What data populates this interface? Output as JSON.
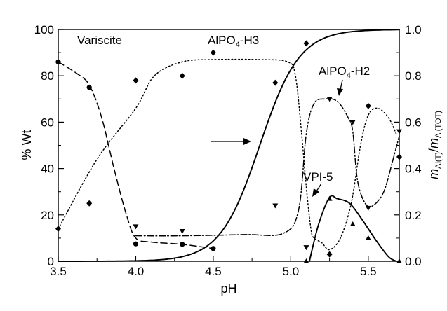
{
  "chart_data": {
    "type": "scatter",
    "xlabel": "pH",
    "ylabel_left": "% Wt",
    "ylabel_right": {
      "main": "m",
      "sub1": "Al(T)",
      "sep": "/",
      "main2": "m",
      "sub2": "Al(TOT)"
    },
    "xlim": [
      3.5,
      5.7
    ],
    "ylim_left": [
      0,
      100
    ],
    "ylim_right": [
      0.0,
      1.0
    ],
    "x_ticks": [
      "3.5",
      "4.0",
      "4.5",
      "5.0",
      "5.5"
    ],
    "x_tick_values": [
      3.5,
      4.0,
      4.5,
      5.0,
      5.5
    ],
    "y_left_ticks": [
      "0",
      "20",
      "40",
      "60",
      "80",
      "100"
    ],
    "y_left_tick_values": [
      0,
      20,
      40,
      60,
      80,
      100
    ],
    "y_right_ticks": [
      "0.0",
      "0.2",
      "0.4",
      "0.6",
      "0.8",
      "1.0"
    ],
    "y_right_tick_values": [
      0.0,
      0.2,
      0.4,
      0.6,
      0.8,
      1.0
    ],
    "grid": false,
    "annotations": {
      "variscite": "Variscite",
      "alpo4_h3": {
        "main": "AlPO",
        "sub": "4",
        "rest": "-H3"
      },
      "alpo4_h2": {
        "main": "AlPO",
        "sub": "4",
        "rest": "-H2"
      },
      "vpi5": "VPI-5"
    },
    "series": [
      {
        "marker": "circle",
        "line": "dashed",
        "points": [
          [
            3.5,
            86
          ],
          [
            3.7,
            75
          ],
          [
            4.0,
            7.5
          ],
          [
            4.3,
            7.3
          ],
          [
            4.5,
            5.5
          ]
        ],
        "curve": [
          [
            3.5,
            86
          ],
          [
            3.62,
            81
          ],
          [
            3.7,
            76
          ],
          [
            3.78,
            62
          ],
          [
            3.86,
            40
          ],
          [
            3.94,
            20
          ],
          [
            4.0,
            10
          ],
          [
            4.1,
            8.3
          ],
          [
            4.3,
            7.3
          ],
          [
            4.5,
            5.5
          ]
        ]
      },
      {
        "marker": "diamond",
        "line": "dotted",
        "points": [
          [
            3.5,
            14
          ],
          [
            3.7,
            25
          ],
          [
            4.0,
            78
          ],
          [
            4.3,
            80
          ],
          [
            4.5,
            90
          ],
          [
            4.9,
            77
          ],
          [
            5.1,
            94
          ],
          [
            5.25,
            3
          ],
          [
            5.5,
            67
          ],
          [
            5.7,
            45
          ]
        ],
        "curve": [
          [
            3.5,
            14
          ],
          [
            3.75,
            44
          ],
          [
            4.0,
            66
          ],
          [
            4.12,
            80
          ],
          [
            4.3,
            86
          ],
          [
            4.5,
            87
          ],
          [
            4.8,
            87
          ],
          [
            4.98,
            86
          ],
          [
            5.03,
            80
          ],
          [
            5.07,
            55
          ],
          [
            5.1,
            32
          ],
          [
            5.13,
            14
          ],
          [
            5.15,
            10
          ],
          [
            5.2,
            8
          ],
          [
            5.25,
            5
          ],
          [
            5.32,
            10
          ],
          [
            5.39,
            25
          ],
          [
            5.45,
            50
          ],
          [
            5.5,
            63
          ],
          [
            5.56,
            66
          ],
          [
            5.63,
            62
          ],
          [
            5.68,
            55
          ]
        ]
      },
      {
        "marker": "triangle-down",
        "line": "dash-dot",
        "points": [
          [
            4.0,
            15
          ],
          [
            4.3,
            13
          ],
          [
            4.9,
            24
          ],
          [
            5.1,
            6
          ],
          [
            5.25,
            70
          ],
          [
            5.4,
            60
          ],
          [
            5.5,
            23
          ],
          [
            5.7,
            56
          ]
        ],
        "curve": [
          [
            4.0,
            11
          ],
          [
            4.3,
            11
          ],
          [
            4.7,
            11.5
          ],
          [
            4.95,
            12
          ],
          [
            5.05,
            22
          ],
          [
            5.1,
            55
          ],
          [
            5.15,
            68
          ],
          [
            5.22,
            70
          ],
          [
            5.3,
            69
          ],
          [
            5.37,
            62
          ],
          [
            5.4,
            56
          ],
          [
            5.43,
            35
          ],
          [
            5.48,
            25
          ],
          [
            5.53,
            24
          ],
          [
            5.6,
            30
          ],
          [
            5.66,
            44
          ],
          [
            5.7,
            54
          ]
        ]
      },
      {
        "marker": "triangle-up",
        "line": "solid",
        "points": [
          [
            5.1,
            0
          ],
          [
            5.25,
            27
          ],
          [
            5.4,
            16
          ],
          [
            5.5,
            10
          ],
          [
            5.7,
            0
          ]
        ],
        "curve": [
          [
            5.12,
            0
          ],
          [
            5.18,
            16
          ],
          [
            5.25,
            27.5
          ],
          [
            5.3,
            27
          ],
          [
            5.38,
            25
          ],
          [
            5.46,
            18
          ],
          [
            5.55,
            9
          ],
          [
            5.63,
            2
          ],
          [
            5.68,
            0
          ]
        ]
      },
      {
        "axis": "right",
        "line": "solid",
        "function": "sigmoid",
        "midpoint": 4.8,
        "slope": 7.8
      }
    ]
  }
}
